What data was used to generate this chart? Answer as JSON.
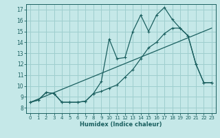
{
  "xlabel": "Humidex (Indice chaleur)",
  "bg_color": "#c5e8e8",
  "grid_color": "#9ecece",
  "line_color": "#1a5f5f",
  "xlim": [
    -0.5,
    23.5
  ],
  "ylim": [
    7.5,
    17.5
  ],
  "xticks": [
    0,
    1,
    2,
    3,
    4,
    5,
    6,
    7,
    8,
    9,
    10,
    11,
    12,
    13,
    14,
    15,
    16,
    17,
    18,
    19,
    20,
    21,
    22,
    23
  ],
  "yticks": [
    8,
    9,
    10,
    11,
    12,
    13,
    14,
    15,
    16,
    17
  ],
  "line1_x": [
    0,
    1,
    2,
    3,
    4,
    5,
    6,
    7,
    8,
    9,
    10,
    11,
    12,
    13,
    14,
    15,
    16,
    17,
    18,
    19,
    20,
    21,
    22,
    23
  ],
  "line1_y": [
    8.5,
    8.7,
    9.4,
    9.3,
    8.5,
    8.5,
    8.5,
    8.6,
    9.3,
    10.4,
    14.3,
    12.5,
    12.6,
    15.0,
    16.5,
    15.0,
    16.5,
    17.2,
    16.1,
    15.3,
    14.6,
    12.0,
    10.3,
    10.3
  ],
  "line2_x": [
    0,
    1,
    2,
    3,
    4,
    5,
    6,
    7,
    8,
    9,
    10,
    11,
    12,
    13,
    14,
    15,
    16,
    17,
    18,
    19,
    20,
    21,
    22,
    23
  ],
  "line2_y": [
    8.5,
    8.7,
    9.4,
    9.3,
    8.5,
    8.5,
    8.5,
    8.6,
    9.3,
    9.5,
    9.8,
    10.1,
    10.8,
    11.5,
    12.5,
    13.5,
    14.0,
    14.8,
    15.3,
    15.3,
    14.6,
    12.0,
    10.3,
    10.3
  ],
  "line3_x": [
    0,
    23
  ],
  "line3_y": [
    8.5,
    15.3
  ]
}
